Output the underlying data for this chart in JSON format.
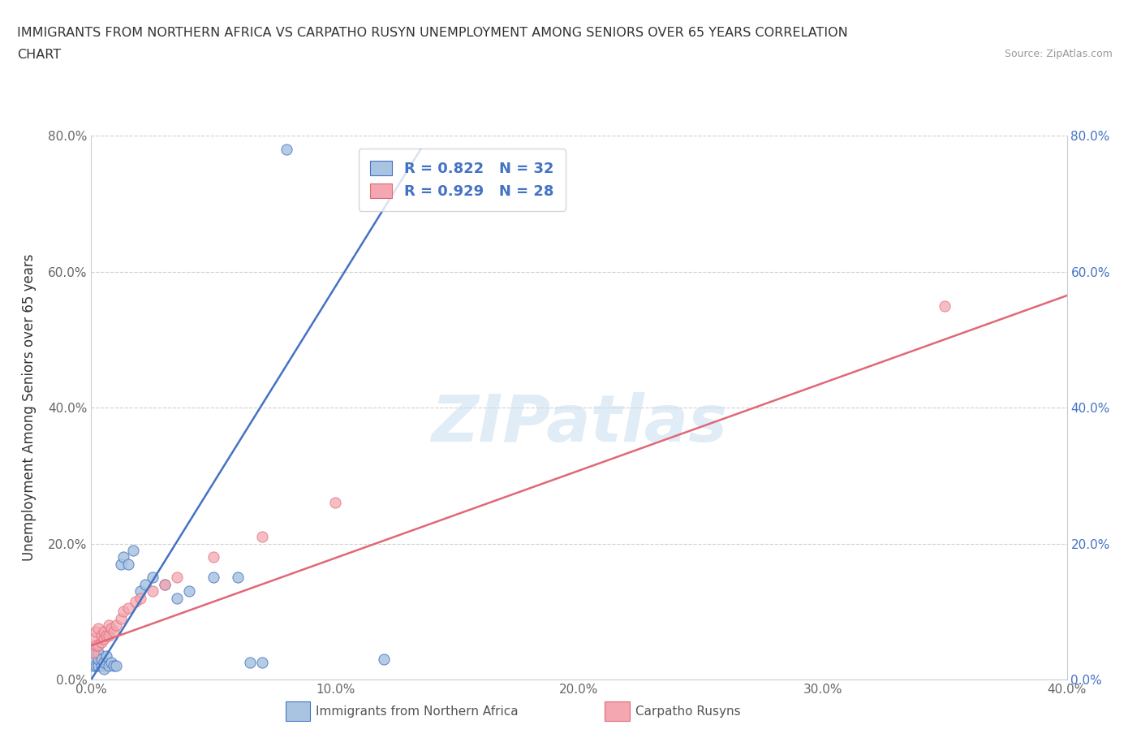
{
  "title_line1": "IMMIGRANTS FROM NORTHERN AFRICA VS CARPATHO RUSYN UNEMPLOYMENT AMONG SENIORS OVER 65 YEARS CORRELATION",
  "title_line2": "CHART",
  "source_text": "Source: ZipAtlas.com",
  "ylabel": "Unemployment Among Seniors over 65 years",
  "xlim": [
    0.0,
    0.4
  ],
  "ylim": [
    0.0,
    0.8
  ],
  "xticks": [
    0.0,
    0.1,
    0.2,
    0.3,
    0.4
  ],
  "yticks": [
    0.0,
    0.2,
    0.4,
    0.6,
    0.8
  ],
  "xtick_labels": [
    "0.0%",
    "10.0%",
    "20.0%",
    "30.0%",
    "40.0%"
  ],
  "ytick_labels_left": [
    "0.0%",
    "20.0%",
    "40.0%",
    "60.0%",
    "80.0%"
  ],
  "ytick_labels_right": [
    "0.0%",
    "20.0%",
    "40.0%",
    "60.0%",
    "80.0%"
  ],
  "blue_fill": "#a8c4e0",
  "blue_edge": "#4472c4",
  "pink_fill": "#f4a7b0",
  "pink_edge": "#e06878",
  "legend_label1": "Immigrants from Northern Africa",
  "legend_label2": "Carpatho Rusyns",
  "legend_R1": "R = 0.822",
  "legend_N1": "N = 32",
  "legend_R2": "R = 0.929",
  "legend_N2": "N = 28",
  "watermark": "ZIPatlas",
  "background_color": "#ffffff",
  "blue_scatter": {
    "x": [
      0.001,
      0.001,
      0.002,
      0.002,
      0.003,
      0.003,
      0.003,
      0.004,
      0.004,
      0.005,
      0.005,
      0.006,
      0.007,
      0.008,
      0.009,
      0.01,
      0.012,
      0.013,
      0.015,
      0.017,
      0.02,
      0.022,
      0.025,
      0.03,
      0.035,
      0.04,
      0.05,
      0.06,
      0.065,
      0.07,
      0.12,
      0.08
    ],
    "y": [
      0.02,
      0.03,
      0.02,
      0.04,
      0.02,
      0.03,
      0.04,
      0.02,
      0.03,
      0.015,
      0.025,
      0.035,
      0.02,
      0.025,
      0.02,
      0.02,
      0.17,
      0.18,
      0.17,
      0.19,
      0.13,
      0.14,
      0.15,
      0.14,
      0.12,
      0.13,
      0.15,
      0.15,
      0.025,
      0.025,
      0.03,
      0.78
    ]
  },
  "pink_scatter": {
    "x": [
      0.001,
      0.001,
      0.002,
      0.002,
      0.003,
      0.003,
      0.004,
      0.004,
      0.005,
      0.005,
      0.006,
      0.007,
      0.007,
      0.008,
      0.009,
      0.01,
      0.012,
      0.013,
      0.015,
      0.018,
      0.02,
      0.025,
      0.03,
      0.035,
      0.05,
      0.07,
      0.1,
      0.35
    ],
    "y": [
      0.04,
      0.06,
      0.05,
      0.07,
      0.05,
      0.075,
      0.055,
      0.065,
      0.06,
      0.07,
      0.065,
      0.065,
      0.08,
      0.075,
      0.07,
      0.08,
      0.09,
      0.1,
      0.105,
      0.115,
      0.12,
      0.13,
      0.14,
      0.15,
      0.18,
      0.21,
      0.26,
      0.55
    ]
  },
  "blue_line": {
    "x0": 0.0,
    "x1": 0.135,
    "y0": 0.0,
    "y1": 0.78
  },
  "pink_line": {
    "x0": 0.0,
    "x1": 0.4,
    "y0": 0.05,
    "y1": 0.565
  }
}
